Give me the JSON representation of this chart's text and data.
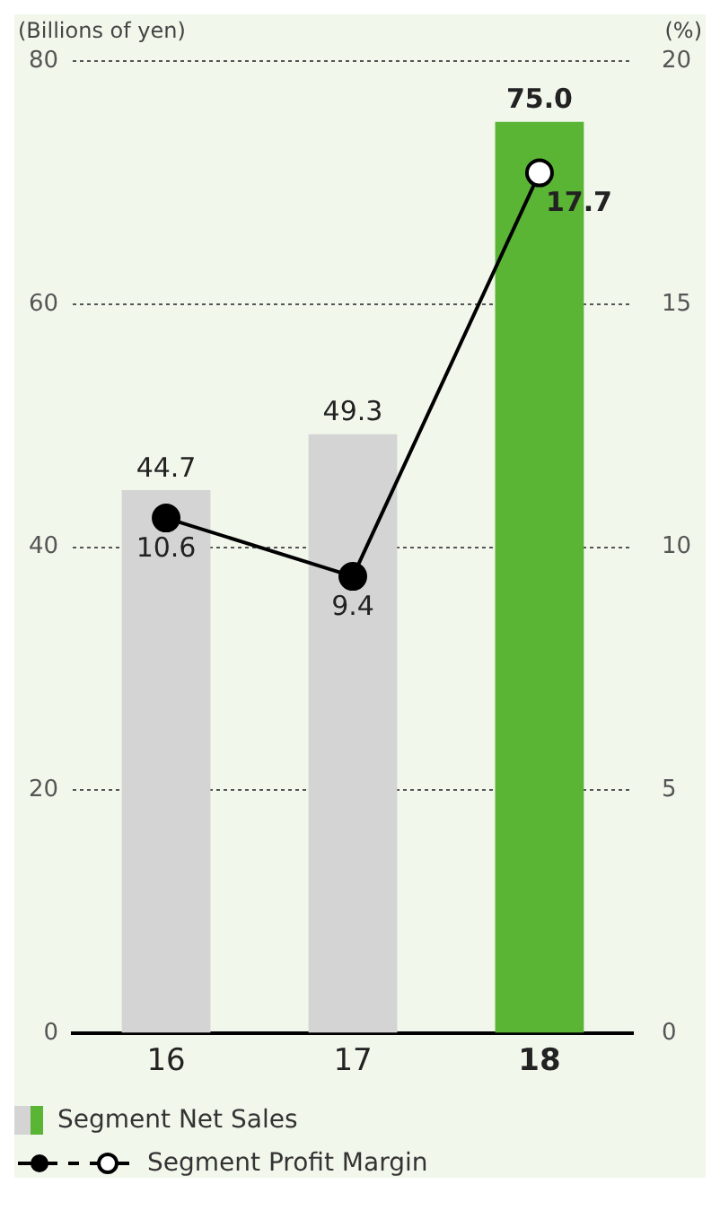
{
  "chart_data": {
    "type": "bar",
    "ylabel": "(Billions of yen)",
    "y2label": "(%)",
    "categories": [
      "16",
      "17",
      "18"
    ],
    "series": [
      {
        "name": "Segment Net Sales",
        "values": [
          44.7,
          49.3,
          75.0
        ],
        "colors": [
          "#d4d4d4",
          "#d4d4d4",
          "#5ab535"
        ],
        "value_labels": [
          "44.7",
          "49.3",
          "75.0"
        ]
      },
      {
        "name": "Segment Profit Margin",
        "type": "line",
        "axis": "y2",
        "color": "#000000",
        "colors": [
          "#000000",
          "#000000",
          "#ffffff"
        ],
        "marker": "circle",
        "values": [
          10.6,
          9.4,
          17.7
        ],
        "value_labels": [
          "10.6",
          "9.4",
          "17.7"
        ]
      }
    ],
    "ylim": [
      0,
      80
    ],
    "yticks": [
      0,
      20,
      40,
      60,
      80
    ],
    "y2lim": [
      0,
      20
    ],
    "y2ticks": [
      0,
      5,
      10,
      15,
      20
    ],
    "grid": "y",
    "legend": "bottom"
  }
}
